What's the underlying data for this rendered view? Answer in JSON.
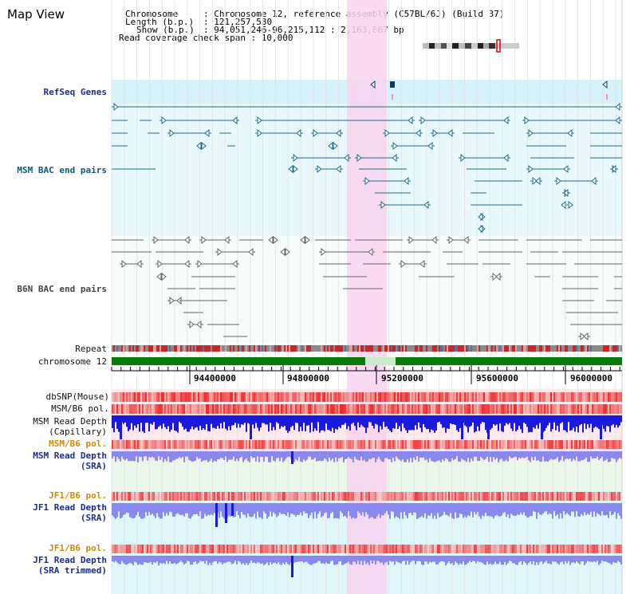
{
  "map_title": "Map View",
  "info": {
    "chromosome_key": "Chromosome",
    "chromosome_val": ": Chromosome 12, reference assembly (C57BL/6J) (Build 37)",
    "length_key": "Length (b.p.)",
    "length_val": ": 121,257,530",
    "show_key": "Show (b.p.)",
    "show_val": ": 94,051,246-96,215,112 : 2,163,867 bp",
    "coverage": "Read coverage check span : 10,000"
  },
  "tracks": {
    "refseq": "RefSeq Genes",
    "msm_bac": "MSM BAC end pairs",
    "b6n_bac": "B6N BAC end pairs",
    "repeat": "Repeat",
    "chromosome": "chromosome 12",
    "dbsnp": "dbSNP(Mouse)",
    "msm_b6_pol_1": "MSM/B6 pol.",
    "msm_depth_cap_1": "MSM Read Depth",
    "msm_depth_cap_2": "(Capillary)",
    "msm_b6_pol_2": "MSM/B6 pol.",
    "msm_depth_sra_1": "MSM Read Depth",
    "msm_depth_sra_2": "(SRA)",
    "jf1_b6_pol_1": "JF1/B6 pol.",
    "jf1_depth_sra_1": "JF1 Read Depth",
    "jf1_depth_sra_2": "(SRA)",
    "jf1_b6_pol_2": "JF1/B6 pol.",
    "jf1_depth_trim_1": "JF1 Read Depth",
    "jf1_depth_trim_2": "(SRA trimmed)"
  },
  "axis_ticks": [
    "94400000",
    "94800000",
    "95200000",
    "95600000",
    "96000000"
  ],
  "colors": {
    "highlight": "#f9d4f0",
    "band_cyan": "#d6f2fa",
    "band_green": "#eaf8ea",
    "gene": "#1a6e87",
    "bac_gray": "#666666",
    "chromosome_green": "#0a7a0a",
    "depth_blue": "#1a1adc",
    "depth_light": "#8888ee",
    "snp_red": "#e83a3a"
  }
}
